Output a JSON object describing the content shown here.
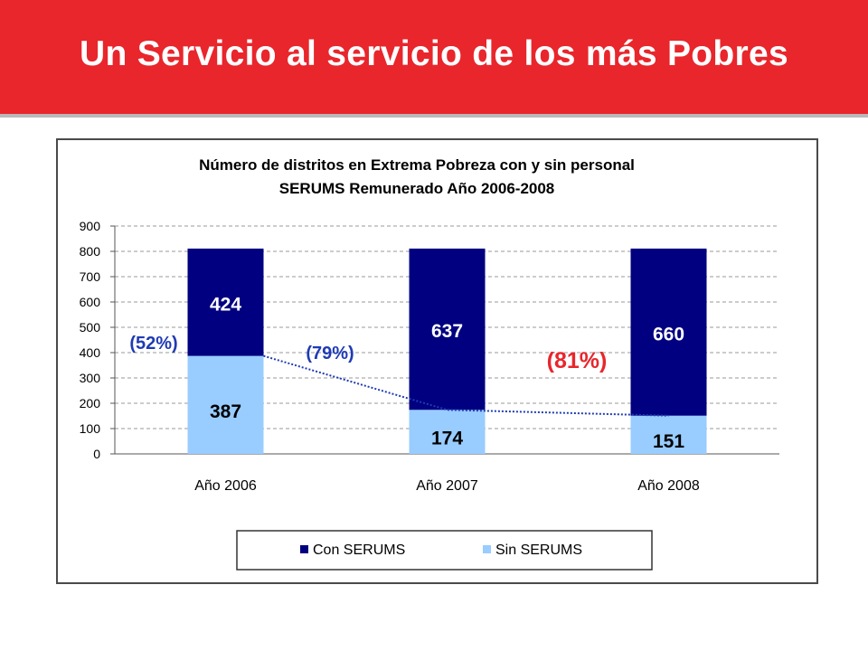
{
  "slide": {
    "title": "Un Servicio al servicio de los más Pobres",
    "banner_color": "#e8262c"
  },
  "chart_data": {
    "type": "bar",
    "stacked": true,
    "title_line1": "Número de distritos en Extrema Pobreza con y sin personal",
    "title_line2": "SERUMS Remunerado  Año 2006-2008",
    "categories": [
      "Año 2006",
      "Año 2007",
      "Año 2008"
    ],
    "series": [
      {
        "name": "Sin SERUMS",
        "values": [
          387,
          174,
          151
        ],
        "color": "#99ccff"
      },
      {
        "name": "Con SERUMS",
        "values": [
          424,
          637,
          660
        ],
        "color": "#000080"
      }
    ],
    "ylim": [
      0,
      900
    ],
    "yticks": [
      "0",
      "100",
      "200",
      "300",
      "400",
      "500",
      "600",
      "700",
      "800",
      "900"
    ],
    "grid": true,
    "legend_position": "bottom",
    "trend_line": {
      "series": "Sin SERUMS",
      "style": "dotted",
      "color": "#1f3bb3"
    },
    "annotations": [
      {
        "text": "(52%)",
        "color": "#1f3bb3"
      },
      {
        "text": "(79%)",
        "color": "#1f3bb3"
      },
      {
        "text": "(81%)",
        "color": "#e8262c"
      }
    ]
  }
}
